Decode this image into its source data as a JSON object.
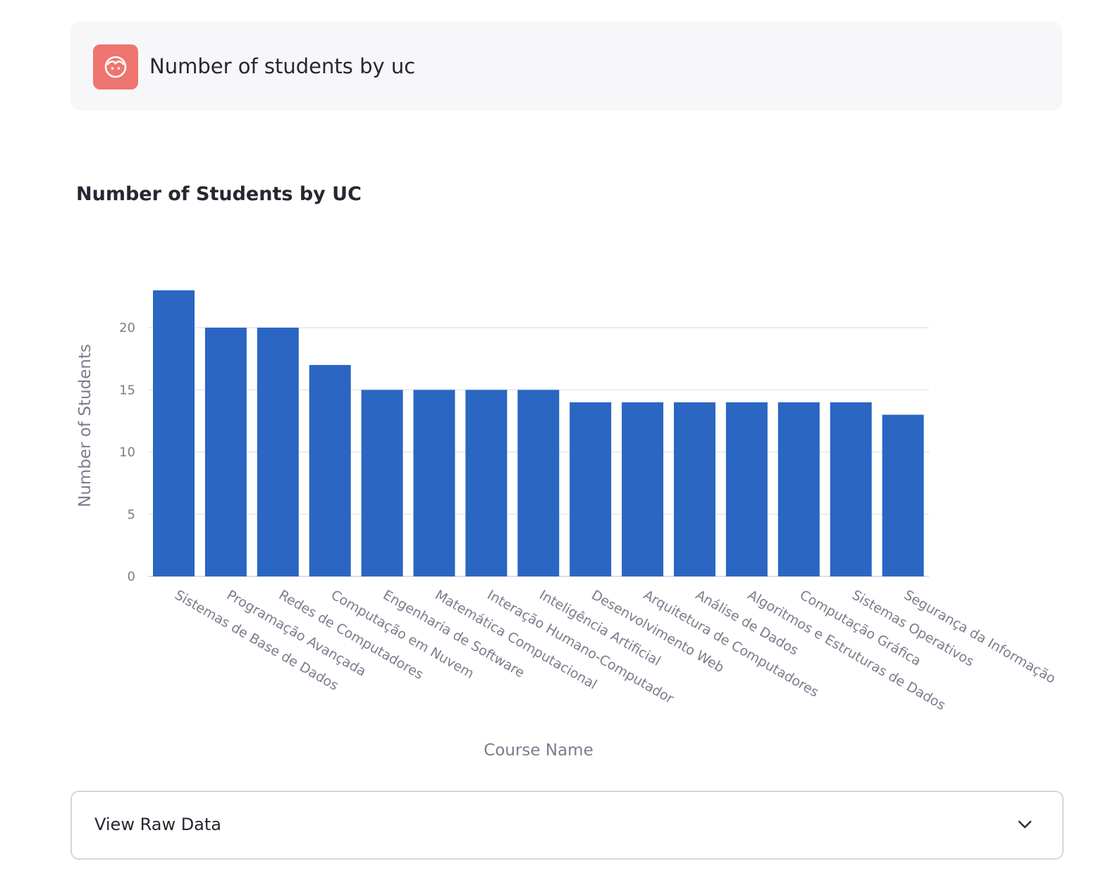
{
  "header": {
    "title": "Number of students by uc",
    "icon": "face-icon",
    "icon_color": "#ee7570"
  },
  "chart_title": "Number of Students by UC",
  "expander": {
    "label": "View Raw Data",
    "icon": "chevron-down-icon"
  },
  "chart_data": {
    "type": "bar",
    "title": "Number of Students by UC",
    "xlabel": "Course Name",
    "ylabel": "Number of Students",
    "ylim": [
      0,
      23
    ],
    "yticks": [
      0,
      5,
      10,
      15,
      20
    ],
    "grid": true,
    "bar_color": "#2a66c2",
    "categories": [
      "Sistemas de Base de Dados",
      "Programação Avançada",
      "Redes de Computadores",
      "Computação em Nuvem",
      "Engenharia de Software",
      "Matemática Computacional",
      "Interação Humano-Computador",
      "Inteligência Artificial",
      "Desenvolvimento Web",
      "Arquitetura de Computadores",
      "Análise de Dados",
      "Algoritmos e Estruturas de Dados",
      "Computação Gráfica",
      "Sistemas Operativos",
      "Segurança da Informação"
    ],
    "values": [
      23,
      20,
      20,
      17,
      15,
      15,
      15,
      15,
      14,
      14,
      14,
      14,
      14,
      14,
      13
    ]
  }
}
